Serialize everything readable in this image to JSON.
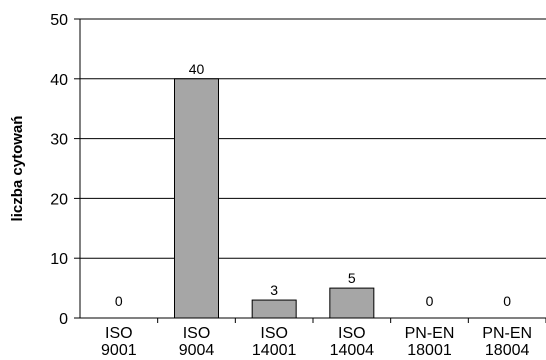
{
  "chart_data": {
    "type": "bar",
    "categories": [
      [
        "ISO",
        "9001"
      ],
      [
        "ISO",
        "9004"
      ],
      [
        "ISO",
        "14001"
      ],
      [
        "ISO",
        "14004"
      ],
      [
        "PN-EN",
        "18001"
      ],
      [
        "PN-EN",
        "18004"
      ]
    ],
    "values": [
      0,
      40,
      3,
      5,
      0,
      0
    ],
    "data_labels": [
      "0",
      "40",
      "3",
      "5",
      "0",
      "0"
    ],
    "title": "",
    "xlabel": "",
    "ylabel": "liczba cytowań",
    "ylim": [
      0,
      50
    ],
    "yticks": [
      0,
      10,
      20,
      30,
      40,
      50
    ],
    "grid": "horizontal",
    "legend": "none",
    "colors": {
      "bar_fill": "#a6a6a6",
      "bar_stroke": "#000000",
      "grid": "#000000",
      "axis": "#000000"
    }
  }
}
